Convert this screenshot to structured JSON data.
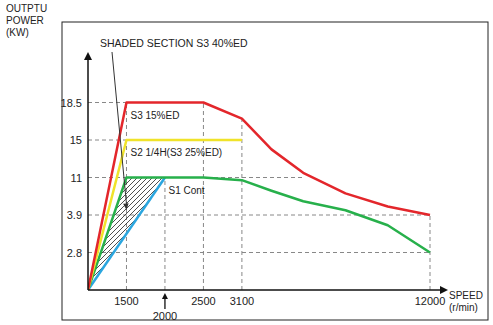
{
  "chart_data": {
    "type": "line",
    "x_label": "SPEED (r/min)",
    "y_label": "OUTPTU POWER (KW)",
    "xlim": [
      0,
      12000
    ],
    "xticks": [
      1500,
      2000,
      2500,
      3100,
      12000
    ],
    "ylim": [
      0,
      22
    ],
    "yticks": [
      2.8,
      3.9,
      11,
      15,
      18.5
    ],
    "grid": true,
    "annotations": [
      "SHADED SECTION S3 40%ED"
    ],
    "series": [
      {
        "name": "S3 15%ED",
        "color": "#e3262b",
        "x": [
          0,
          1500,
          2500,
          3100,
          4500,
          6000,
          8000,
          10000,
          12000
        ],
        "values": [
          0,
          18.5,
          18.5,
          17,
          14,
          11.5,
          8,
          5.5,
          3.9
        ]
      },
      {
        "name": "S2 1/4H(S3 25%ED)",
        "color": "#f0e32a",
        "x": [
          0,
          1500,
          3100
        ],
        "values": [
          0,
          15,
          15
        ]
      },
      {
        "name": "S1 Cont",
        "color": "#27b04b",
        "x": [
          0,
          1500,
          2500,
          3100,
          4500,
          6000,
          8000,
          10000,
          12000
        ],
        "values": [
          0,
          11,
          11,
          10.5,
          8.5,
          6.5,
          4.8,
          3.6,
          2.8
        ]
      },
      {
        "color": "#2ba6df",
        "x": [
          0,
          2000
        ],
        "values": [
          0,
          11
        ]
      }
    ]
  }
}
